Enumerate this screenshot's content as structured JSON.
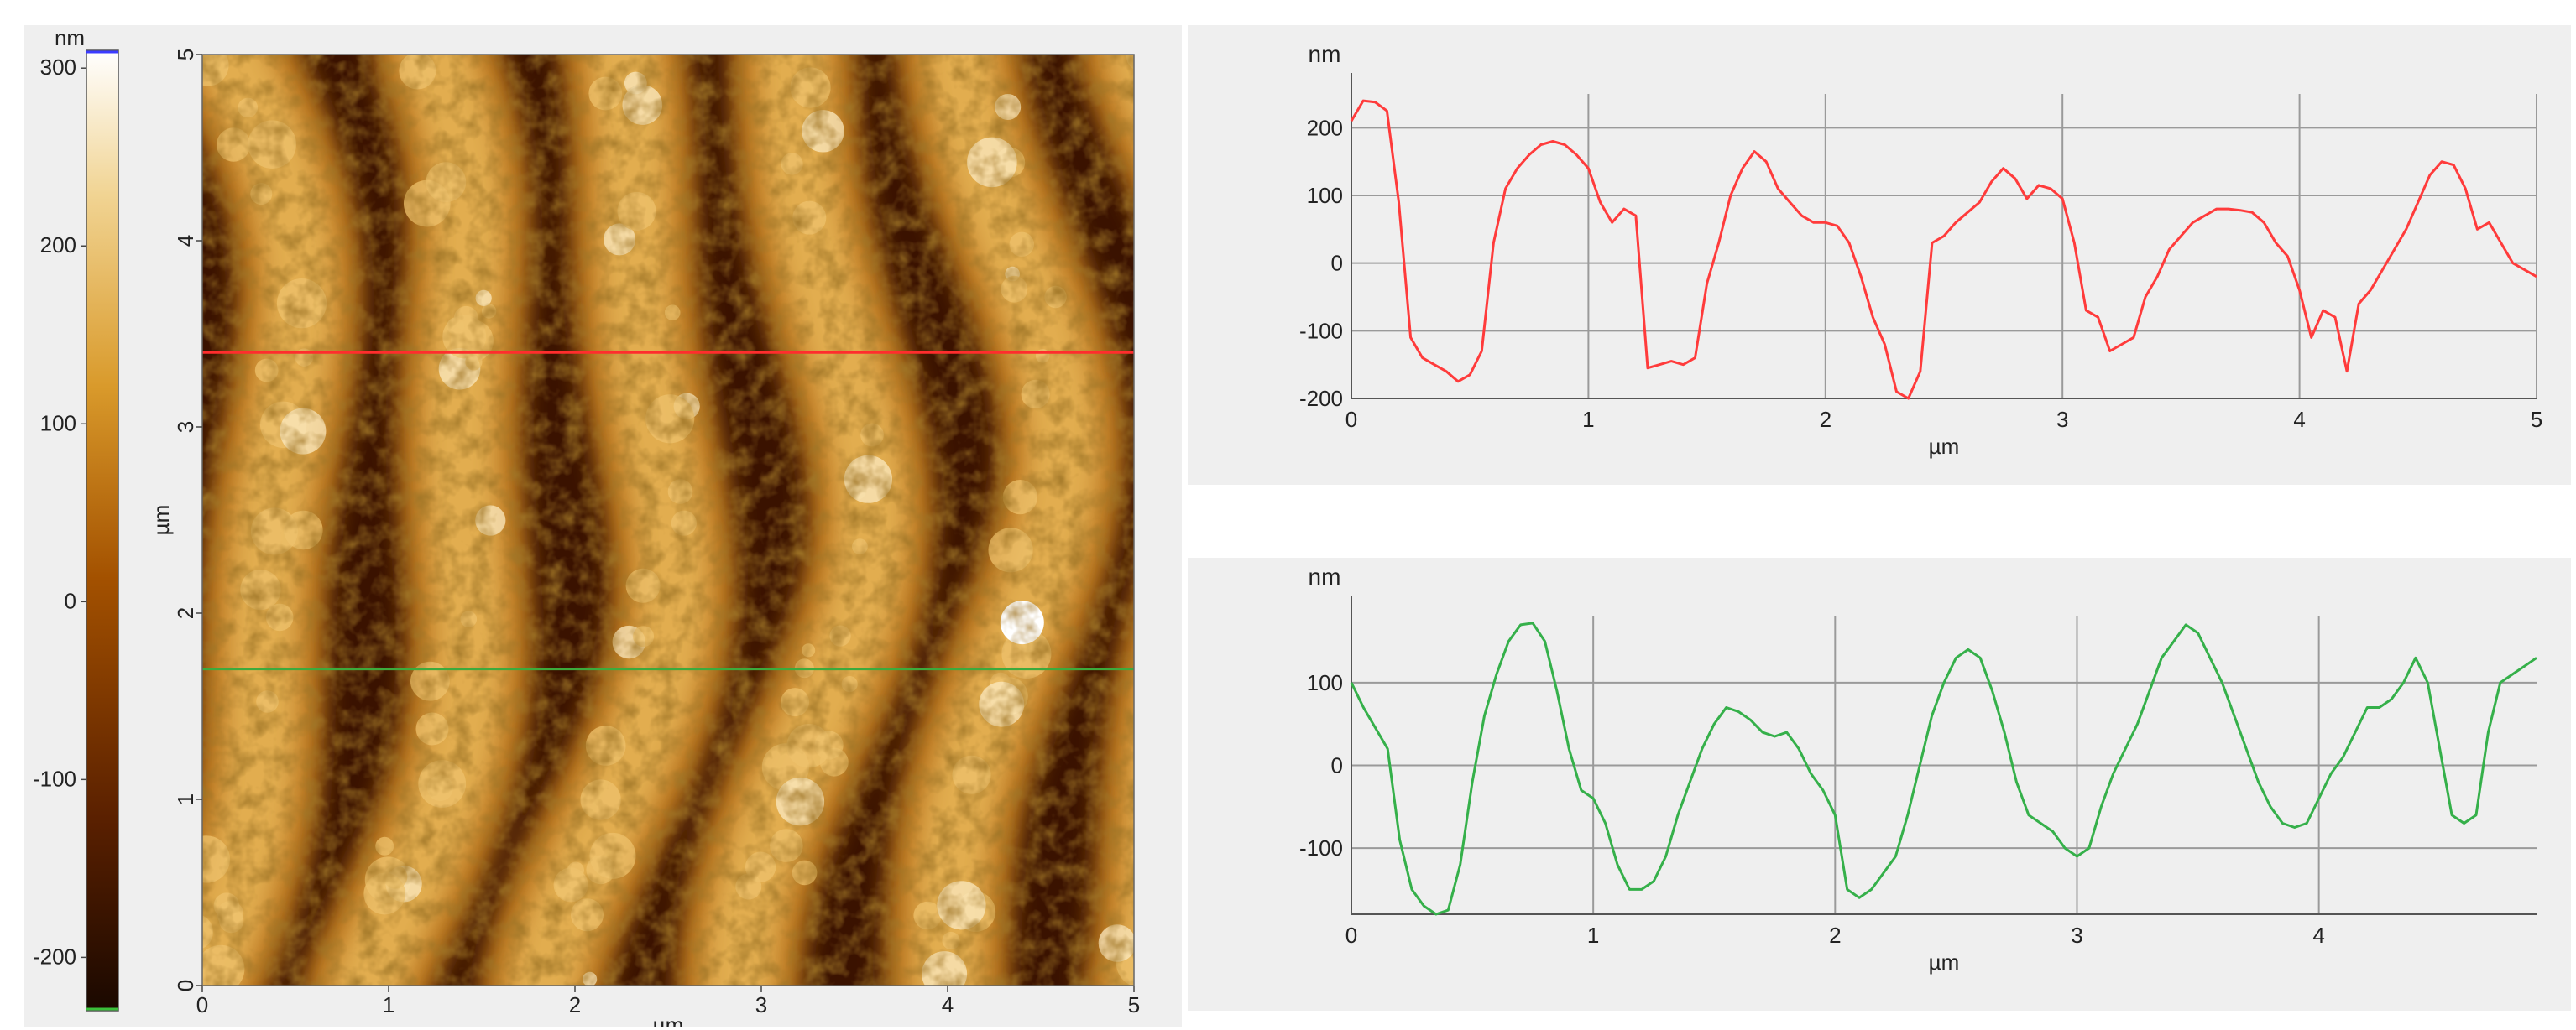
{
  "chart_data": [
    {
      "type": "heatmap",
      "title": "",
      "xlabel": "µm",
      "ylabel": "µm",
      "xlim": [
        0,
        5
      ],
      "ylim": [
        0,
        5
      ],
      "xticks": [
        "0",
        "1",
        "2",
        "3",
        "4",
        "5"
      ],
      "yticks": [
        "0",
        "1",
        "2",
        "3",
        "4",
        "5"
      ],
      "colorbar": {
        "unit": "nm",
        "range": [
          -230,
          310
        ],
        "ticks": [
          "300",
          "200",
          "100",
          "0",
          "-100",
          "-200"
        ],
        "colors": [
          "#1a0800",
          "#5a2000",
          "#a35100",
          "#d99a2b",
          "#f1d493",
          "#ffffff"
        ]
      },
      "profile_lines": [
        {
          "y": 3.4,
          "color": "#ff2d2d"
        },
        {
          "y": 1.7,
          "color": "#3daa3d"
        }
      ]
    },
    {
      "type": "line",
      "title": "",
      "xlabel": "µm",
      "ylabel": "nm",
      "xlim": [
        0,
        5
      ],
      "ylim": [
        -200,
        250
      ],
      "xticks": [
        "0",
        "1",
        "2",
        "3",
        "4",
        "5"
      ],
      "yticks": [
        "200",
        "100",
        "0",
        "-100",
        "-200"
      ],
      "grid": true,
      "series": [
        {
          "color": "#ff3b3b",
          "x": [
            0,
            0.05,
            0.1,
            0.15,
            0.2,
            0.25,
            0.3,
            0.35,
            0.4,
            0.45,
            0.5,
            0.55,
            0.6,
            0.65,
            0.7,
            0.75,
            0.8,
            0.85,
            0.9,
            0.95,
            1.0,
            1.05,
            1.1,
            1.15,
            1.2,
            1.25,
            1.3,
            1.35,
            1.4,
            1.45,
            1.5,
            1.55,
            1.6,
            1.65,
            1.7,
            1.75,
            1.8,
            1.85,
            1.9,
            1.95,
            2.0,
            2.05,
            2.1,
            2.15,
            2.2,
            2.25,
            2.3,
            2.35,
            2.4,
            2.45,
            2.5,
            2.55,
            2.6,
            2.65,
            2.7,
            2.75,
            2.8,
            2.85,
            2.9,
            2.95,
            3.0,
            3.05,
            3.1,
            3.15,
            3.2,
            3.25,
            3.3,
            3.35,
            3.4,
            3.45,
            3.5,
            3.55,
            3.6,
            3.65,
            3.7,
            3.75,
            3.8,
            3.85,
            3.9,
            3.95,
            4.0,
            4.05,
            4.1,
            4.15,
            4.2,
            4.25,
            4.3,
            4.35,
            4.4,
            4.45,
            4.5,
            4.55,
            4.6,
            4.65,
            4.7,
            4.75,
            4.8,
            4.85,
            4.9,
            4.95,
            5.0
          ],
          "values": [
            210,
            240,
            238,
            225,
            90,
            -110,
            -140,
            -150,
            -160,
            -175,
            -165,
            -130,
            30,
            110,
            140,
            160,
            175,
            180,
            175,
            160,
            140,
            90,
            60,
            80,
            70,
            -155,
            -150,
            -145,
            -150,
            -140,
            -30,
            30,
            100,
            140,
            165,
            150,
            110,
            90,
            70,
            60,
            60,
            55,
            30,
            -20,
            -80,
            -120,
            -190,
            -200,
            -160,
            30,
            40,
            60,
            75,
            90,
            120,
            140,
            125,
            95,
            115,
            110,
            95,
            30,
            -70,
            -80,
            -130,
            -120,
            -110,
            -50,
            -20,
            20,
            40,
            60,
            70,
            80,
            80,
            78,
            75,
            60,
            30,
            10,
            -40,
            -110,
            -70,
            -80,
            -160,
            -60,
            -40,
            -10,
            20,
            50,
            90,
            130,
            150,
            145,
            110,
            50,
            60,
            30,
            0,
            -10,
            -20
          ]
        }
      ]
    },
    {
      "type": "line",
      "title": "",
      "xlabel": "µm",
      "ylabel": "nm",
      "xlim": [
        0,
        4.9
      ],
      "ylim": [
        -180,
        180
      ],
      "xticks": [
        "0",
        "1",
        "2",
        "3",
        "4"
      ],
      "yticks": [
        "100",
        "0",
        "-100"
      ],
      "grid": true,
      "series": [
        {
          "color": "#35b04a",
          "x": [
            0,
            0.05,
            0.1,
            0.15,
            0.2,
            0.25,
            0.3,
            0.35,
            0.4,
            0.45,
            0.5,
            0.55,
            0.6,
            0.65,
            0.7,
            0.75,
            0.8,
            0.85,
            0.9,
            0.95,
            1.0,
            1.05,
            1.1,
            1.15,
            1.2,
            1.25,
            1.3,
            1.35,
            1.4,
            1.45,
            1.5,
            1.55,
            1.6,
            1.65,
            1.7,
            1.75,
            1.8,
            1.85,
            1.9,
            1.95,
            2.0,
            2.05,
            2.1,
            2.15,
            2.2,
            2.25,
            2.3,
            2.35,
            2.4,
            2.45,
            2.5,
            2.55,
            2.6,
            2.65,
            2.7,
            2.75,
            2.8,
            2.85,
            2.9,
            2.95,
            3.0,
            3.05,
            3.1,
            3.15,
            3.2,
            3.25,
            3.3,
            3.35,
            3.4,
            3.45,
            3.5,
            3.55,
            3.6,
            3.65,
            3.7,
            3.75,
            3.8,
            3.85,
            3.9,
            3.95,
            4.0,
            4.05,
            4.1,
            4.15,
            4.2,
            4.25,
            4.3,
            4.35,
            4.4,
            4.45,
            4.5,
            4.55,
            4.6,
            4.65,
            4.7,
            4.75,
            4.8,
            4.85,
            4.9
          ],
          "values": [
            100,
            70,
            45,
            20,
            -90,
            -150,
            -170,
            -180,
            -175,
            -120,
            -20,
            60,
            110,
            150,
            170,
            172,
            150,
            90,
            20,
            -30,
            -40,
            -70,
            -120,
            -150,
            -150,
            -140,
            -110,
            -60,
            -20,
            20,
            50,
            70,
            65,
            55,
            40,
            35,
            40,
            20,
            -10,
            -30,
            -60,
            -150,
            -160,
            -150,
            -130,
            -110,
            -60,
            0,
            60,
            100,
            130,
            140,
            130,
            90,
            40,
            -20,
            -60,
            -70,
            -80,
            -100,
            -110,
            -100,
            -50,
            -10,
            20,
            50,
            90,
            130,
            150,
            170,
            160,
            130,
            100,
            60,
            20,
            -20,
            -50,
            -70,
            -75,
            -70,
            -40,
            -10,
            10,
            40,
            70,
            70,
            80,
            100,
            130,
            100,
            20,
            -60,
            -70,
            -60,
            40,
            100,
            110,
            120,
            130
          ]
        }
      ]
    }
  ]
}
